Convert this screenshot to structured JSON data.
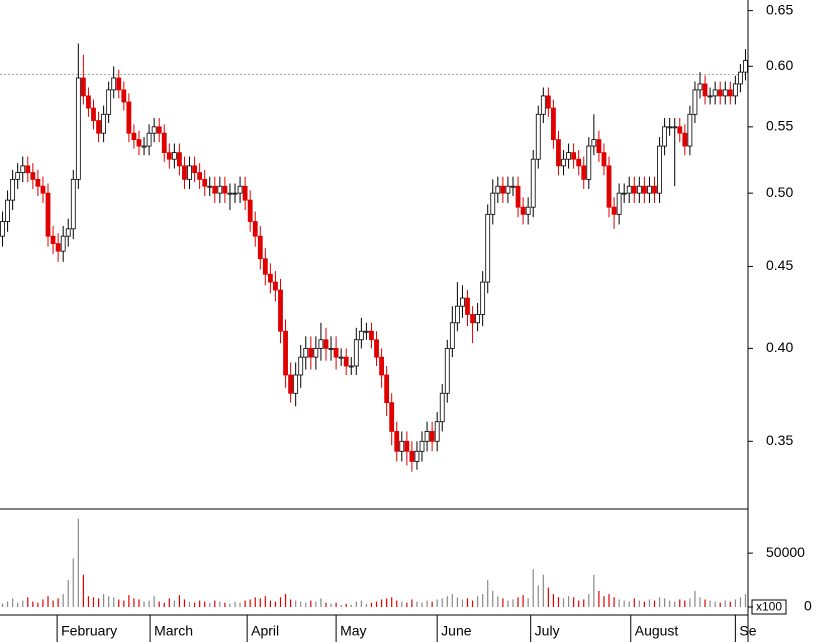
{
  "chart_data": {
    "type": "candlestick",
    "log_scale": true,
    "up_color": "#ffffff",
    "down_color": "#e00000",
    "ylim": [
      0.318,
      0.66
    ],
    "yticks": [
      0.35,
      {
        "value": 0.4,
        "label": "0.40"
      },
      0.45,
      {
        "value": 0.5,
        "label": "0.50"
      },
      0.55,
      {
        "value": 0.6,
        "label": "0.60"
      },
      0.65
    ],
    "hline": 0.593,
    "xlim": [
      -0.5,
      147.5
    ],
    "xticks": [
      {
        "value": 10.8,
        "label": "February"
      },
      {
        "value": 29.2,
        "label": "March"
      },
      {
        "value": 48.4,
        "label": "April"
      },
      {
        "value": 66.0,
        "label": "May"
      },
      {
        "value": 86.0,
        "label": "June"
      },
      {
        "value": 104.5,
        "label": "July"
      },
      {
        "value": 124.3,
        "label": "August"
      },
      {
        "value": 145.0,
        "label": "Se"
      }
    ],
    "ohlc": [
      [
        0.47,
        0.487,
        0.463,
        0.48
      ],
      [
        0.48,
        0.502,
        0.473,
        0.495
      ],
      [
        0.495,
        0.517,
        0.488,
        0.51
      ],
      [
        0.51,
        0.522,
        0.503,
        0.515
      ],
      [
        0.515,
        0.527,
        0.508,
        0.52
      ],
      [
        0.52,
        0.527,
        0.508,
        0.515
      ],
      [
        0.515,
        0.522,
        0.503,
        0.51
      ],
      [
        0.51,
        0.517,
        0.498,
        0.505
      ],
      [
        0.505,
        0.512,
        0.493,
        0.5
      ],
      [
        0.5,
        0.507,
        0.463,
        0.47
      ],
      [
        0.47,
        0.477,
        0.458,
        0.465
      ],
      [
        0.465,
        0.472,
        0.453,
        0.46
      ],
      [
        0.46,
        0.477,
        0.453,
        0.47
      ],
      [
        0.47,
        0.482,
        0.463,
        0.475
      ],
      [
        0.475,
        0.517,
        0.468,
        0.51
      ],
      [
        0.51,
        0.62,
        0.503,
        0.59
      ],
      [
        0.59,
        0.61,
        0.568,
        0.575
      ],
      [
        0.575,
        0.582,
        0.558,
        0.565
      ],
      [
        0.565,
        0.572,
        0.548,
        0.555
      ],
      [
        0.555,
        0.562,
        0.538,
        0.545
      ],
      [
        0.545,
        0.567,
        0.538,
        0.56
      ],
      [
        0.56,
        0.587,
        0.553,
        0.58
      ],
      [
        0.58,
        0.6,
        0.573,
        0.59
      ],
      [
        0.59,
        0.597,
        0.573,
        0.58
      ],
      [
        0.58,
        0.587,
        0.563,
        0.57
      ],
      [
        0.57,
        0.577,
        0.538,
        0.545
      ],
      [
        0.545,
        0.552,
        0.533,
        0.54
      ],
      [
        0.54,
        0.547,
        0.528,
        0.535
      ],
      [
        0.535,
        0.542,
        0.528,
        0.535
      ],
      [
        0.535,
        0.552,
        0.528,
        0.545
      ],
      [
        0.545,
        0.557,
        0.538,
        0.55
      ],
      [
        0.55,
        0.557,
        0.538,
        0.545
      ],
      [
        0.545,
        0.552,
        0.523,
        0.53
      ],
      [
        0.53,
        0.537,
        0.518,
        0.525
      ],
      [
        0.525,
        0.537,
        0.518,
        0.53
      ],
      [
        0.53,
        0.537,
        0.513,
        0.52
      ],
      [
        0.52,
        0.527,
        0.503,
        0.51
      ],
      [
        0.51,
        0.527,
        0.503,
        0.52
      ],
      [
        0.52,
        0.527,
        0.508,
        0.515
      ],
      [
        0.515,
        0.522,
        0.503,
        0.51
      ],
      [
        0.51,
        0.517,
        0.498,
        0.505
      ],
      [
        0.505,
        0.512,
        0.498,
        0.505
      ],
      [
        0.505,
        0.512,
        0.493,
        0.5
      ],
      [
        0.5,
        0.512,
        0.493,
        0.505
      ],
      [
        0.505,
        0.512,
        0.493,
        0.5
      ],
      [
        0.5,
        0.507,
        0.488,
        0.5
      ],
      [
        0.5,
        0.507,
        0.493,
        0.5
      ],
      [
        0.5,
        0.512,
        0.493,
        0.505
      ],
      [
        0.505,
        0.512,
        0.488,
        0.495
      ],
      [
        0.495,
        0.502,
        0.473,
        0.48
      ],
      [
        0.48,
        0.487,
        0.463,
        0.47
      ],
      [
        0.47,
        0.477,
        0.448,
        0.455
      ],
      [
        0.455,
        0.462,
        0.438,
        0.445
      ],
      [
        0.445,
        0.452,
        0.433,
        0.44
      ],
      [
        0.44,
        0.447,
        0.428,
        0.435
      ],
      [
        0.435,
        0.442,
        0.403,
        0.41
      ],
      [
        0.41,
        0.417,
        0.378,
        0.385
      ],
      [
        0.385,
        0.392,
        0.37,
        0.375
      ],
      [
        0.375,
        0.392,
        0.368,
        0.385
      ],
      [
        0.385,
        0.402,
        0.378,
        0.395
      ],
      [
        0.395,
        0.407,
        0.388,
        0.4
      ],
      [
        0.4,
        0.407,
        0.388,
        0.395
      ],
      [
        0.395,
        0.407,
        0.388,
        0.4
      ],
      [
        0.4,
        0.415,
        0.393,
        0.405
      ],
      [
        0.405,
        0.412,
        0.393,
        0.4
      ],
      [
        0.4,
        0.407,
        0.393,
        0.4
      ],
      [
        0.4,
        0.407,
        0.388,
        0.395
      ],
      [
        0.395,
        0.4,
        0.39,
        0.395
      ],
      [
        0.395,
        0.4,
        0.385,
        0.39
      ],
      [
        0.39,
        0.395,
        0.385,
        0.39
      ],
      [
        0.39,
        0.412,
        0.385,
        0.405
      ],
      [
        0.405,
        0.418,
        0.4,
        0.41
      ],
      [
        0.41,
        0.415,
        0.405,
        0.41
      ],
      [
        0.41,
        0.415,
        0.4,
        0.405
      ],
      [
        0.405,
        0.41,
        0.39,
        0.395
      ],
      [
        0.395,
        0.4,
        0.378,
        0.385
      ],
      [
        0.385,
        0.39,
        0.363,
        0.37
      ],
      [
        0.37,
        0.375,
        0.348,
        0.355
      ],
      [
        0.355,
        0.36,
        0.34,
        0.345
      ],
      [
        0.345,
        0.355,
        0.34,
        0.35
      ],
      [
        0.35,
        0.355,
        0.338,
        0.345
      ],
      [
        0.345,
        0.35,
        0.335,
        0.34
      ],
      [
        0.34,
        0.35,
        0.336,
        0.345
      ],
      [
        0.345,
        0.355,
        0.34,
        0.35
      ],
      [
        0.35,
        0.36,
        0.345,
        0.355
      ],
      [
        0.355,
        0.36,
        0.345,
        0.35
      ],
      [
        0.35,
        0.365,
        0.345,
        0.36
      ],
      [
        0.36,
        0.38,
        0.355,
        0.375
      ],
      [
        0.375,
        0.405,
        0.37,
        0.4
      ],
      [
        0.4,
        0.425,
        0.395,
        0.415
      ],
      [
        0.415,
        0.44,
        0.41,
        0.425
      ],
      [
        0.425,
        0.438,
        0.418,
        0.43
      ],
      [
        0.43,
        0.435,
        0.413,
        0.42
      ],
      [
        0.42,
        0.425,
        0.403,
        0.415
      ],
      [
        0.415,
        0.427,
        0.41,
        0.42
      ],
      [
        0.42,
        0.447,
        0.413,
        0.44
      ],
      [
        0.44,
        0.492,
        0.433,
        0.485
      ],
      [
        0.485,
        0.51,
        0.478,
        0.5
      ],
      [
        0.5,
        0.512,
        0.493,
        0.505
      ],
      [
        0.505,
        0.512,
        0.493,
        0.5
      ],
      [
        0.5,
        0.512,
        0.493,
        0.505
      ],
      [
        0.505,
        0.512,
        0.498,
        0.505
      ],
      [
        0.505,
        0.512,
        0.483,
        0.49
      ],
      [
        0.49,
        0.497,
        0.478,
        0.485
      ],
      [
        0.485,
        0.497,
        0.478,
        0.49
      ],
      [
        0.49,
        0.532,
        0.483,
        0.525
      ],
      [
        0.525,
        0.567,
        0.518,
        0.56
      ],
      [
        0.56,
        0.582,
        0.553,
        0.575
      ],
      [
        0.575,
        0.582,
        0.558,
        0.565
      ],
      [
        0.565,
        0.572,
        0.533,
        0.54
      ],
      [
        0.54,
        0.547,
        0.513,
        0.52
      ],
      [
        0.52,
        0.532,
        0.513,
        0.525
      ],
      [
        0.525,
        0.537,
        0.518,
        0.53
      ],
      [
        0.53,
        0.537,
        0.518,
        0.525
      ],
      [
        0.525,
        0.532,
        0.513,
        0.52
      ],
      [
        0.52,
        0.527,
        0.503,
        0.51
      ],
      [
        0.51,
        0.542,
        0.503,
        0.535
      ],
      [
        0.535,
        0.56,
        0.528,
        0.54
      ],
      [
        0.54,
        0.547,
        0.523,
        0.53
      ],
      [
        0.53,
        0.537,
        0.513,
        0.52
      ],
      [
        0.52,
        0.527,
        0.483,
        0.49
      ],
      [
        0.49,
        0.497,
        0.475,
        0.485
      ],
      [
        0.485,
        0.507,
        0.478,
        0.5
      ],
      [
        0.5,
        0.507,
        0.493,
        0.5
      ],
      [
        0.5,
        0.512,
        0.493,
        0.505
      ],
      [
        0.505,
        0.512,
        0.493,
        0.5
      ],
      [
        0.5,
        0.512,
        0.493,
        0.505
      ],
      [
        0.505,
        0.512,
        0.493,
        0.5
      ],
      [
        0.5,
        0.512,
        0.493,
        0.505
      ],
      [
        0.505,
        0.512,
        0.493,
        0.5
      ],
      [
        0.5,
        0.542,
        0.493,
        0.535
      ],
      [
        0.535,
        0.557,
        0.528,
        0.55
      ],
      [
        0.55,
        0.557,
        0.543,
        0.55
      ],
      [
        0.55,
        0.557,
        0.505,
        0.55
      ],
      [
        0.55,
        0.557,
        0.538,
        0.545
      ],
      [
        0.545,
        0.552,
        0.528,
        0.535
      ],
      [
        0.535,
        0.567,
        0.528,
        0.56
      ],
      [
        0.56,
        0.587,
        0.553,
        0.58
      ],
      [
        0.58,
        0.595,
        0.573,
        0.585
      ],
      [
        0.585,
        0.592,
        0.568,
        0.575
      ],
      [
        0.575,
        0.582,
        0.568,
        0.575
      ],
      [
        0.575,
        0.587,
        0.568,
        0.58
      ],
      [
        0.58,
        0.587,
        0.568,
        0.575
      ],
      [
        0.575,
        0.587,
        0.568,
        0.58
      ],
      [
        0.58,
        0.587,
        0.568,
        0.575
      ],
      [
        0.575,
        0.592,
        0.568,
        0.585
      ],
      [
        0.585,
        0.602,
        0.578,
        0.595
      ],
      [
        0.595,
        0.615,
        0.588,
        0.605
      ]
    ],
    "volume": {
      "unit_label": "x100",
      "ylim": [
        0,
        90000
      ],
      "yticks": [
        0,
        50000
      ],
      "values": [
        3000,
        5000,
        8000,
        4000,
        6000,
        9000,
        5000,
        4000,
        7000,
        10000,
        6000,
        8000,
        12000,
        25000,
        45000,
        82000,
        30000,
        10000,
        9000,
        8000,
        12000,
        10000,
        9000,
        7000,
        6000,
        11000,
        8000,
        7000,
        5000,
        6000,
        10000,
        5000,
        4000,
        8000,
        6000,
        11000,
        7000,
        5000,
        4000,
        6000,
        5000,
        4000,
        6000,
        5000,
        4000,
        3000,
        5000,
        4000,
        6000,
        7000,
        9000,
        8000,
        10000,
        6000,
        5000,
        9000,
        12000,
        7000,
        6000,
        5000,
        4000,
        6000,
        5000,
        8000,
        4000,
        3000,
        4000,
        2000,
        3000,
        2000,
        5000,
        6000,
        3000,
        4000,
        5000,
        7000,
        8000,
        9000,
        6000,
        5000,
        4000,
        7000,
        5000,
        4000,
        6000,
        5000,
        7000,
        8000,
        10000,
        12000,
        9000,
        7000,
        8000,
        6000,
        10000,
        12000,
        25000,
        15000,
        10000,
        8000,
        6000,
        7000,
        9000,
        11000,
        8000,
        35000,
        20000,
        30000,
        18000,
        12000,
        9000,
        8000,
        10000,
        9000,
        6000,
        7000,
        12000,
        30000,
        15000,
        10000,
        12000,
        9000,
        7000,
        6000,
        5000,
        8000,
        6000,
        5000,
        7000,
        6000,
        9000,
        8000,
        6000,
        5000,
        7000,
        6000,
        8000,
        15000,
        9000,
        7000,
        6000,
        5000,
        4000,
        6000,
        5000,
        7000,
        9000,
        12000
      ]
    }
  }
}
